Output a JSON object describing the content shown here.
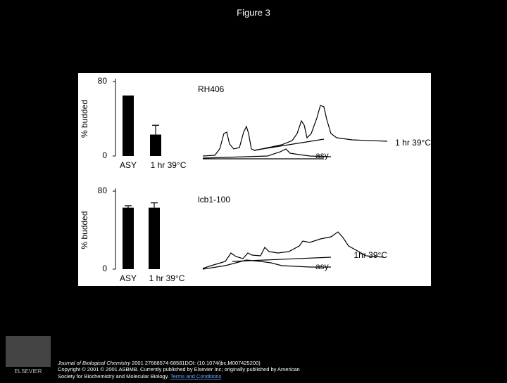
{
  "slide_title": "Figure 3",
  "chart_data": [
    {
      "type": "bar",
      "panel_label": "RH406",
      "y_label": "% budded",
      "categories": [
        "ASY",
        "1 hr 39°C"
      ],
      "values": [
        65,
        23
      ],
      "errors": [
        null,
        10
      ],
      "ylim": [
        0,
        80
      ],
      "yticks": [
        0,
        80
      ],
      "color": "#000000",
      "trace_labels": [
        "1 hr 39°C",
        "asy"
      ]
    },
    {
      "type": "bar",
      "panel_label": "lcb1-100",
      "y_label": "% budded",
      "categories": [
        "ASY",
        "1 hr 39°C"
      ],
      "values": [
        63,
        63
      ],
      "errors": [
        2,
        5
      ],
      "ylim": [
        0,
        80
      ],
      "yticks": [
        0,
        80
      ],
      "color": "#000000",
      "trace_labels": [
        "1hr 39°C",
        "asy"
      ]
    }
  ],
  "footer": {
    "journal": "Journal of Biological Chemistry",
    "citation": "2001 27668574-68581DOI: (10.1074/jbc.M007425200)",
    "copyright": "Copyright © 2001 © 2001 ASBMB. Currently published by Elsevier Inc; originally published by American",
    "society": "Society for Biochemistry and Molecular Biology.",
    "link": "Terms and Conditions",
    "logo_text": "ELSEVIER"
  }
}
